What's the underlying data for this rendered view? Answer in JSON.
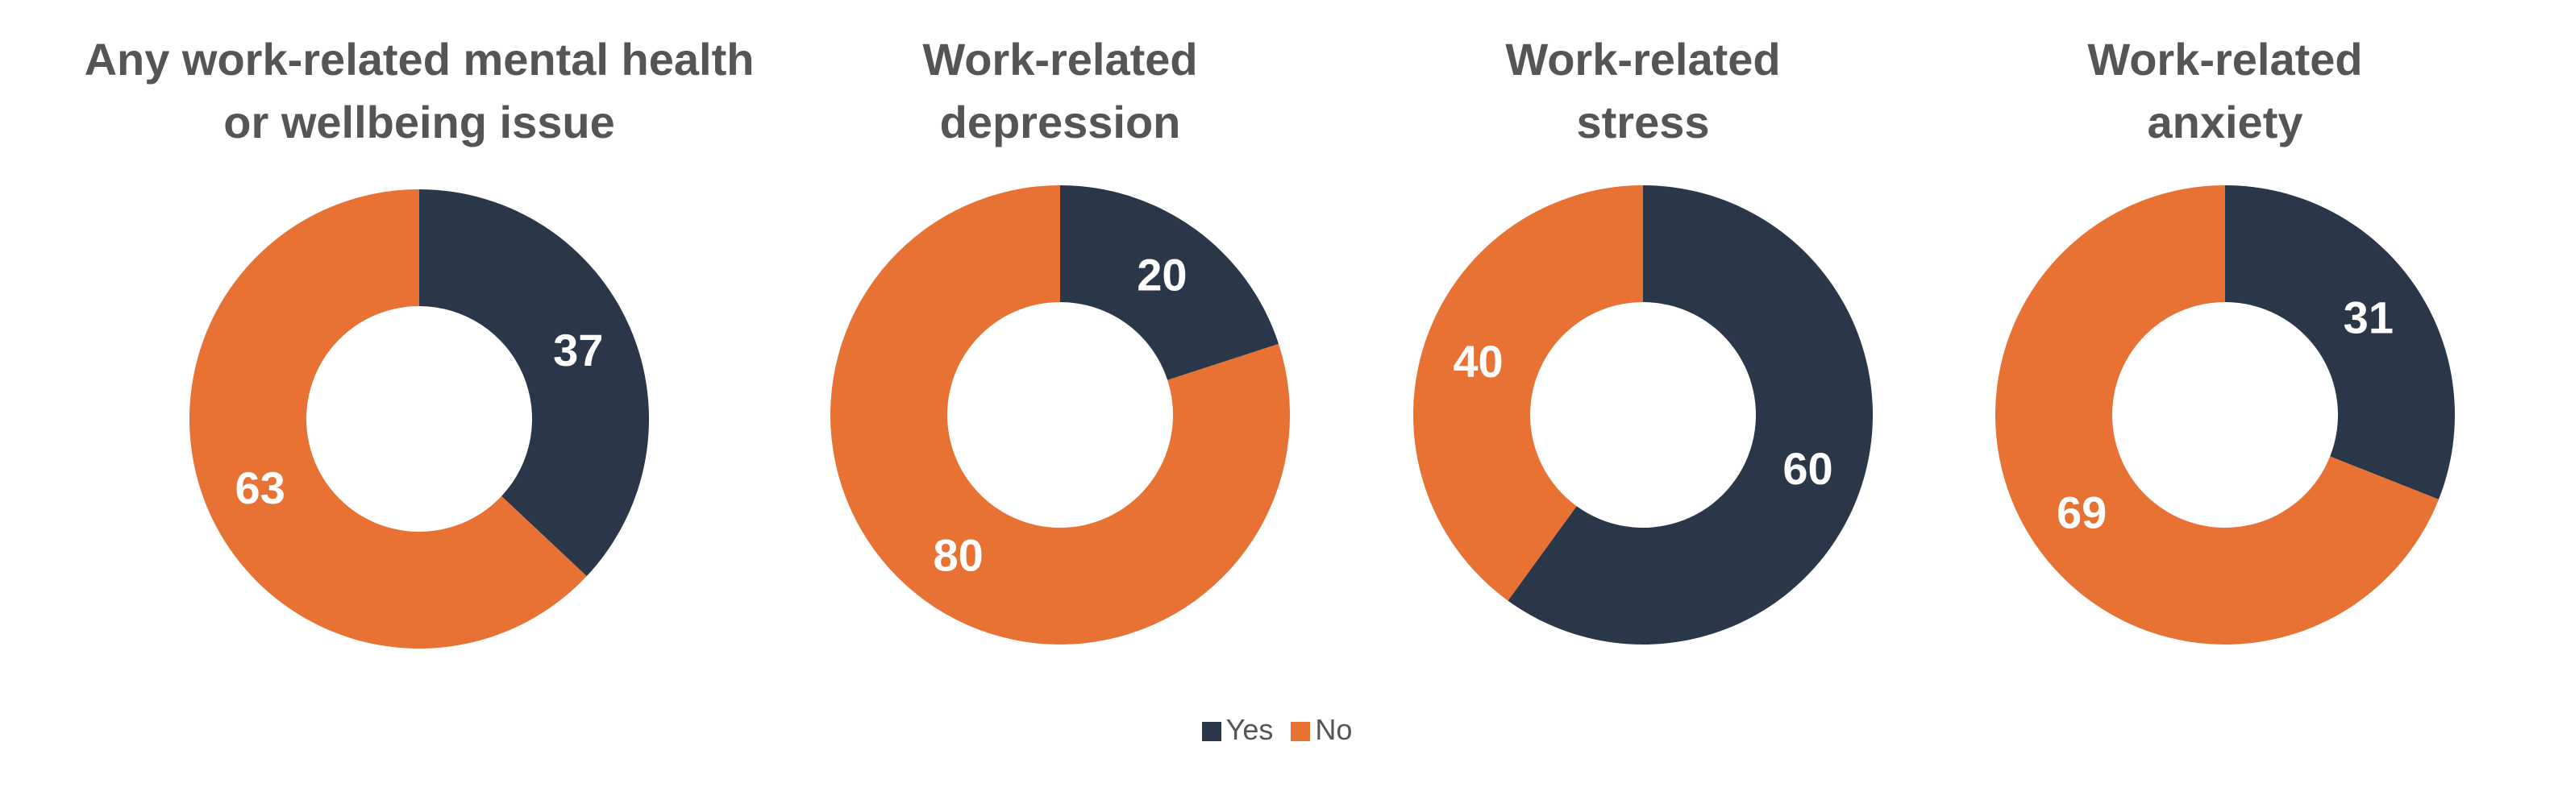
{
  "colors": {
    "yes": "#2a3749",
    "no": "#e87134",
    "title": "#555555",
    "label": "#ffffff"
  },
  "legend": [
    {
      "label": "Yes",
      "color": "#2a3749"
    },
    {
      "label": "No",
      "color": "#e87134"
    }
  ],
  "chart_data": [
    {
      "type": "pie",
      "title_lines": [
        "Any work-related mental health",
        "or wellbeing issue"
      ],
      "categories": [
        "Yes",
        "No"
      ],
      "values": [
        37,
        63
      ]
    },
    {
      "type": "pie",
      "title_lines": [
        "Work-related",
        "depression"
      ],
      "categories": [
        "Yes",
        "No"
      ],
      "values": [
        20,
        80
      ]
    },
    {
      "type": "pie",
      "title_lines": [
        "Work-related",
        "stress"
      ],
      "categories": [
        "Yes",
        "No"
      ],
      "values": [
        60,
        40
      ]
    },
    {
      "type": "pie",
      "title_lines": [
        "Work-related",
        "anxiety"
      ],
      "categories": [
        "Yes",
        "No"
      ],
      "values": [
        31,
        69
      ]
    }
  ]
}
